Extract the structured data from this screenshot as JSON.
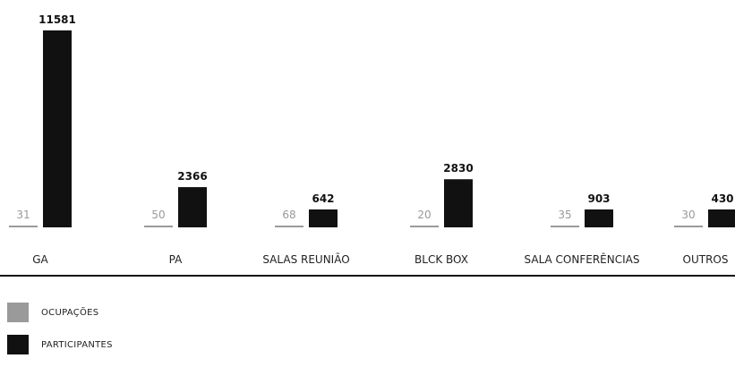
{
  "chart_data": {
    "type": "bar",
    "categories": [
      "GA",
      "PA",
      "SALAS REUNIÃO",
      "BLCK BOX",
      "SALA CONFERÊNCIAS",
      "OUTROS"
    ],
    "series": [
      {
        "name": "OCUPAÇÕES",
        "values": [
          31,
          50,
          68,
          20,
          35,
          30
        ]
      },
      {
        "name": "PARTICIPANTES",
        "values": [
          11581,
          2366,
          642,
          2830,
          903,
          430
        ]
      }
    ],
    "title": "",
    "xlabel": "",
    "ylabel": "",
    "ylim": [
      0,
      11581
    ],
    "grid": false,
    "legend_position": "bottom-left",
    "colors": {
      "ocupacoes": "#9a9a9a",
      "participantes": "#111111"
    }
  }
}
